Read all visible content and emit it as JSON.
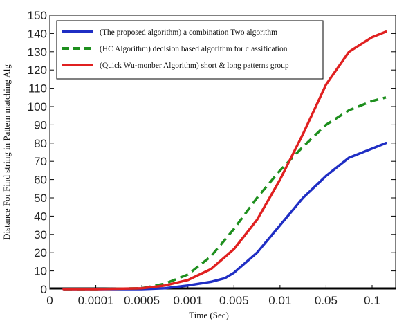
{
  "chart_data": {
    "type": "line",
    "title": "",
    "xlabel": "Time (Sec)",
    "ylabel": "Distance For Find string  in Pattern matching Alg",
    "categories": [
      "0",
      "0.0001",
      "0.0005",
      "0.001",
      "0.005",
      "0.01",
      "0.05",
      "0.1"
    ],
    "ylim": [
      0,
      150
    ],
    "yticks": [
      0,
      10,
      20,
      30,
      40,
      50,
      60,
      70,
      80,
      90,
      100,
      110,
      120,
      130,
      140,
      150
    ],
    "grid": false,
    "legend_position": "top-left",
    "series": [
      {
        "name": "(The proposed algorithm) a combination Two algorithm",
        "color": "#1f2ec4",
        "style": "solid",
        "x": [
          0.3,
          1.0,
          2.0,
          2.5,
          3.0,
          3.5,
          3.8,
          4.0,
          4.5,
          5.0,
          5.5,
          6.0,
          6.5,
          7.0,
          7.3
        ],
        "values": [
          0,
          0,
          0,
          0.5,
          2,
          4,
          6,
          9,
          20,
          35,
          50,
          62,
          72,
          77,
          80
        ]
      },
      {
        "name": "(HC Algorithm) decision based algorithm for classification",
        "color": "#1e8f1e",
        "style": "dashed",
        "x": [
          0.3,
          1.0,
          2.0,
          2.5,
          3.0,
          3.5,
          4.0,
          4.5,
          5.0,
          5.5,
          6.0,
          6.5,
          7.0,
          7.3
        ],
        "values": [
          0,
          0,
          0.5,
          3,
          8,
          18,
          33,
          50,
          65,
          78,
          90,
          98,
          103,
          105
        ]
      },
      {
        "name": "(Quick Wu-monber Algorithm) short & long patterns group",
        "color": "#e02020",
        "style": "solid",
        "x": [
          0.3,
          1.0,
          2.0,
          2.5,
          3.0,
          3.5,
          4.0,
          4.5,
          5.0,
          5.5,
          6.0,
          6.5,
          7.0,
          7.3
        ],
        "values": [
          0,
          0,
          0.5,
          2,
          5,
          11,
          22,
          38,
          60,
          85,
          112,
          130,
          138,
          141
        ]
      }
    ]
  }
}
